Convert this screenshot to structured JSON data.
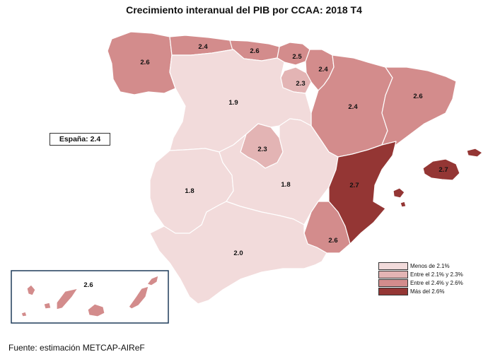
{
  "title": "Crecimiento interanual del PIB por CCAA: 2018 T4",
  "national": "España:  2.4",
  "source": "Fuente: estimación METCAP-AIReF",
  "colors": {
    "low": "#f2dbdb",
    "mid_low": "#e3b4b4",
    "mid_high": "#d38c8c",
    "high": "#943634",
    "inset_border": "#1f3c5a"
  },
  "legend": [
    {
      "label": "Menos de 2.1%",
      "color": "#f2dbdb"
    },
    {
      "label": "Entre el 2.1% y 2.3%",
      "color": "#e3b4b4"
    },
    {
      "label": "Entre el 2.4% y 2.6%",
      "color": "#d38c8c"
    },
    {
      "label": "Más del 2.6%",
      "color": "#943634"
    }
  ],
  "regions": {
    "galicia": "2.6",
    "asturias": "2.4",
    "cantabria": "2.6",
    "pais_vasco": "2.5",
    "navarra": "2.4",
    "la_rioja": "2.3",
    "aragon": "2.4",
    "cataluna": "2.6",
    "castilla_leon": "1.9",
    "madrid": "2.3",
    "extremadura": "1.8",
    "castilla_la_mancha": "1.8",
    "valencia": "2.7",
    "baleares": "2.7",
    "murcia": "2.6",
    "andalucia": "2.0",
    "canarias": "2.6"
  }
}
